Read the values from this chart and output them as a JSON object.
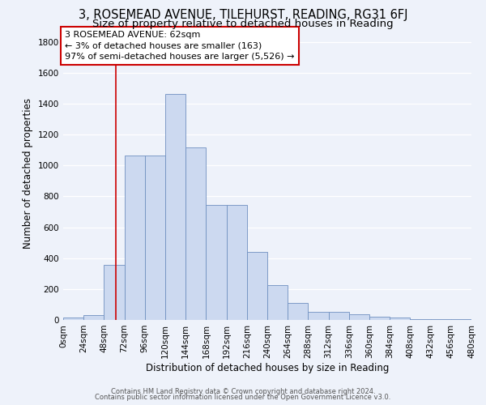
{
  "title": "3, ROSEMEAD AVENUE, TILEHURST, READING, RG31 6FJ",
  "subtitle": "Size of property relative to detached houses in Reading",
  "xlabel": "Distribution of detached houses by size in Reading",
  "ylabel": "Number of detached properties",
  "bar_color": "#ccd9f0",
  "bar_edge_color": "#7090c0",
  "bin_edges": [
    0,
    24,
    48,
    72,
    96,
    120,
    144,
    168,
    192,
    216,
    240,
    264,
    288,
    312,
    336,
    360,
    384,
    408,
    432,
    456,
    480
  ],
  "bar_heights": [
    15,
    30,
    355,
    1065,
    1065,
    1460,
    1115,
    745,
    745,
    440,
    225,
    110,
    55,
    50,
    35,
    20,
    15,
    5,
    5,
    3
  ],
  "tick_labels": [
    "0sqm",
    "24sqm",
    "48sqm",
    "72sqm",
    "96sqm",
    "120sqm",
    "144sqm",
    "168sqm",
    "192sqm",
    "216sqm",
    "240sqm",
    "264sqm",
    "288sqm",
    "312sqm",
    "336sqm",
    "360sqm",
    "384sqm",
    "408sqm",
    "432sqm",
    "456sqm",
    "480sqm"
  ],
  "ylim": [
    0,
    1900
  ],
  "yticks": [
    0,
    200,
    400,
    600,
    800,
    1000,
    1200,
    1400,
    1600,
    1800
  ],
  "xlim": [
    0,
    480
  ],
  "vline_x": 62,
  "vline_color": "#cc0000",
  "annotation_title": "3 ROSEMEAD AVENUE: 62sqm",
  "annotation_line1": "← 3% of detached houses are smaller (163)",
  "annotation_line2": "97% of semi-detached houses are larger (5,526) →",
  "annotation_box_facecolor": "#ffffff",
  "annotation_box_edgecolor": "#cc0000",
  "footer1": "Contains HM Land Registry data © Crown copyright and database right 2024.",
  "footer2": "Contains public sector information licensed under the Open Government Licence v3.0.",
  "background_color": "#eef2fa",
  "grid_color": "#ffffff",
  "title_fontsize": 10.5,
  "subtitle_fontsize": 9.5,
  "axis_label_fontsize": 8.5,
  "tick_fontsize": 7.5,
  "annotation_fontsize": 8.0,
  "footer_fontsize": 6.0
}
